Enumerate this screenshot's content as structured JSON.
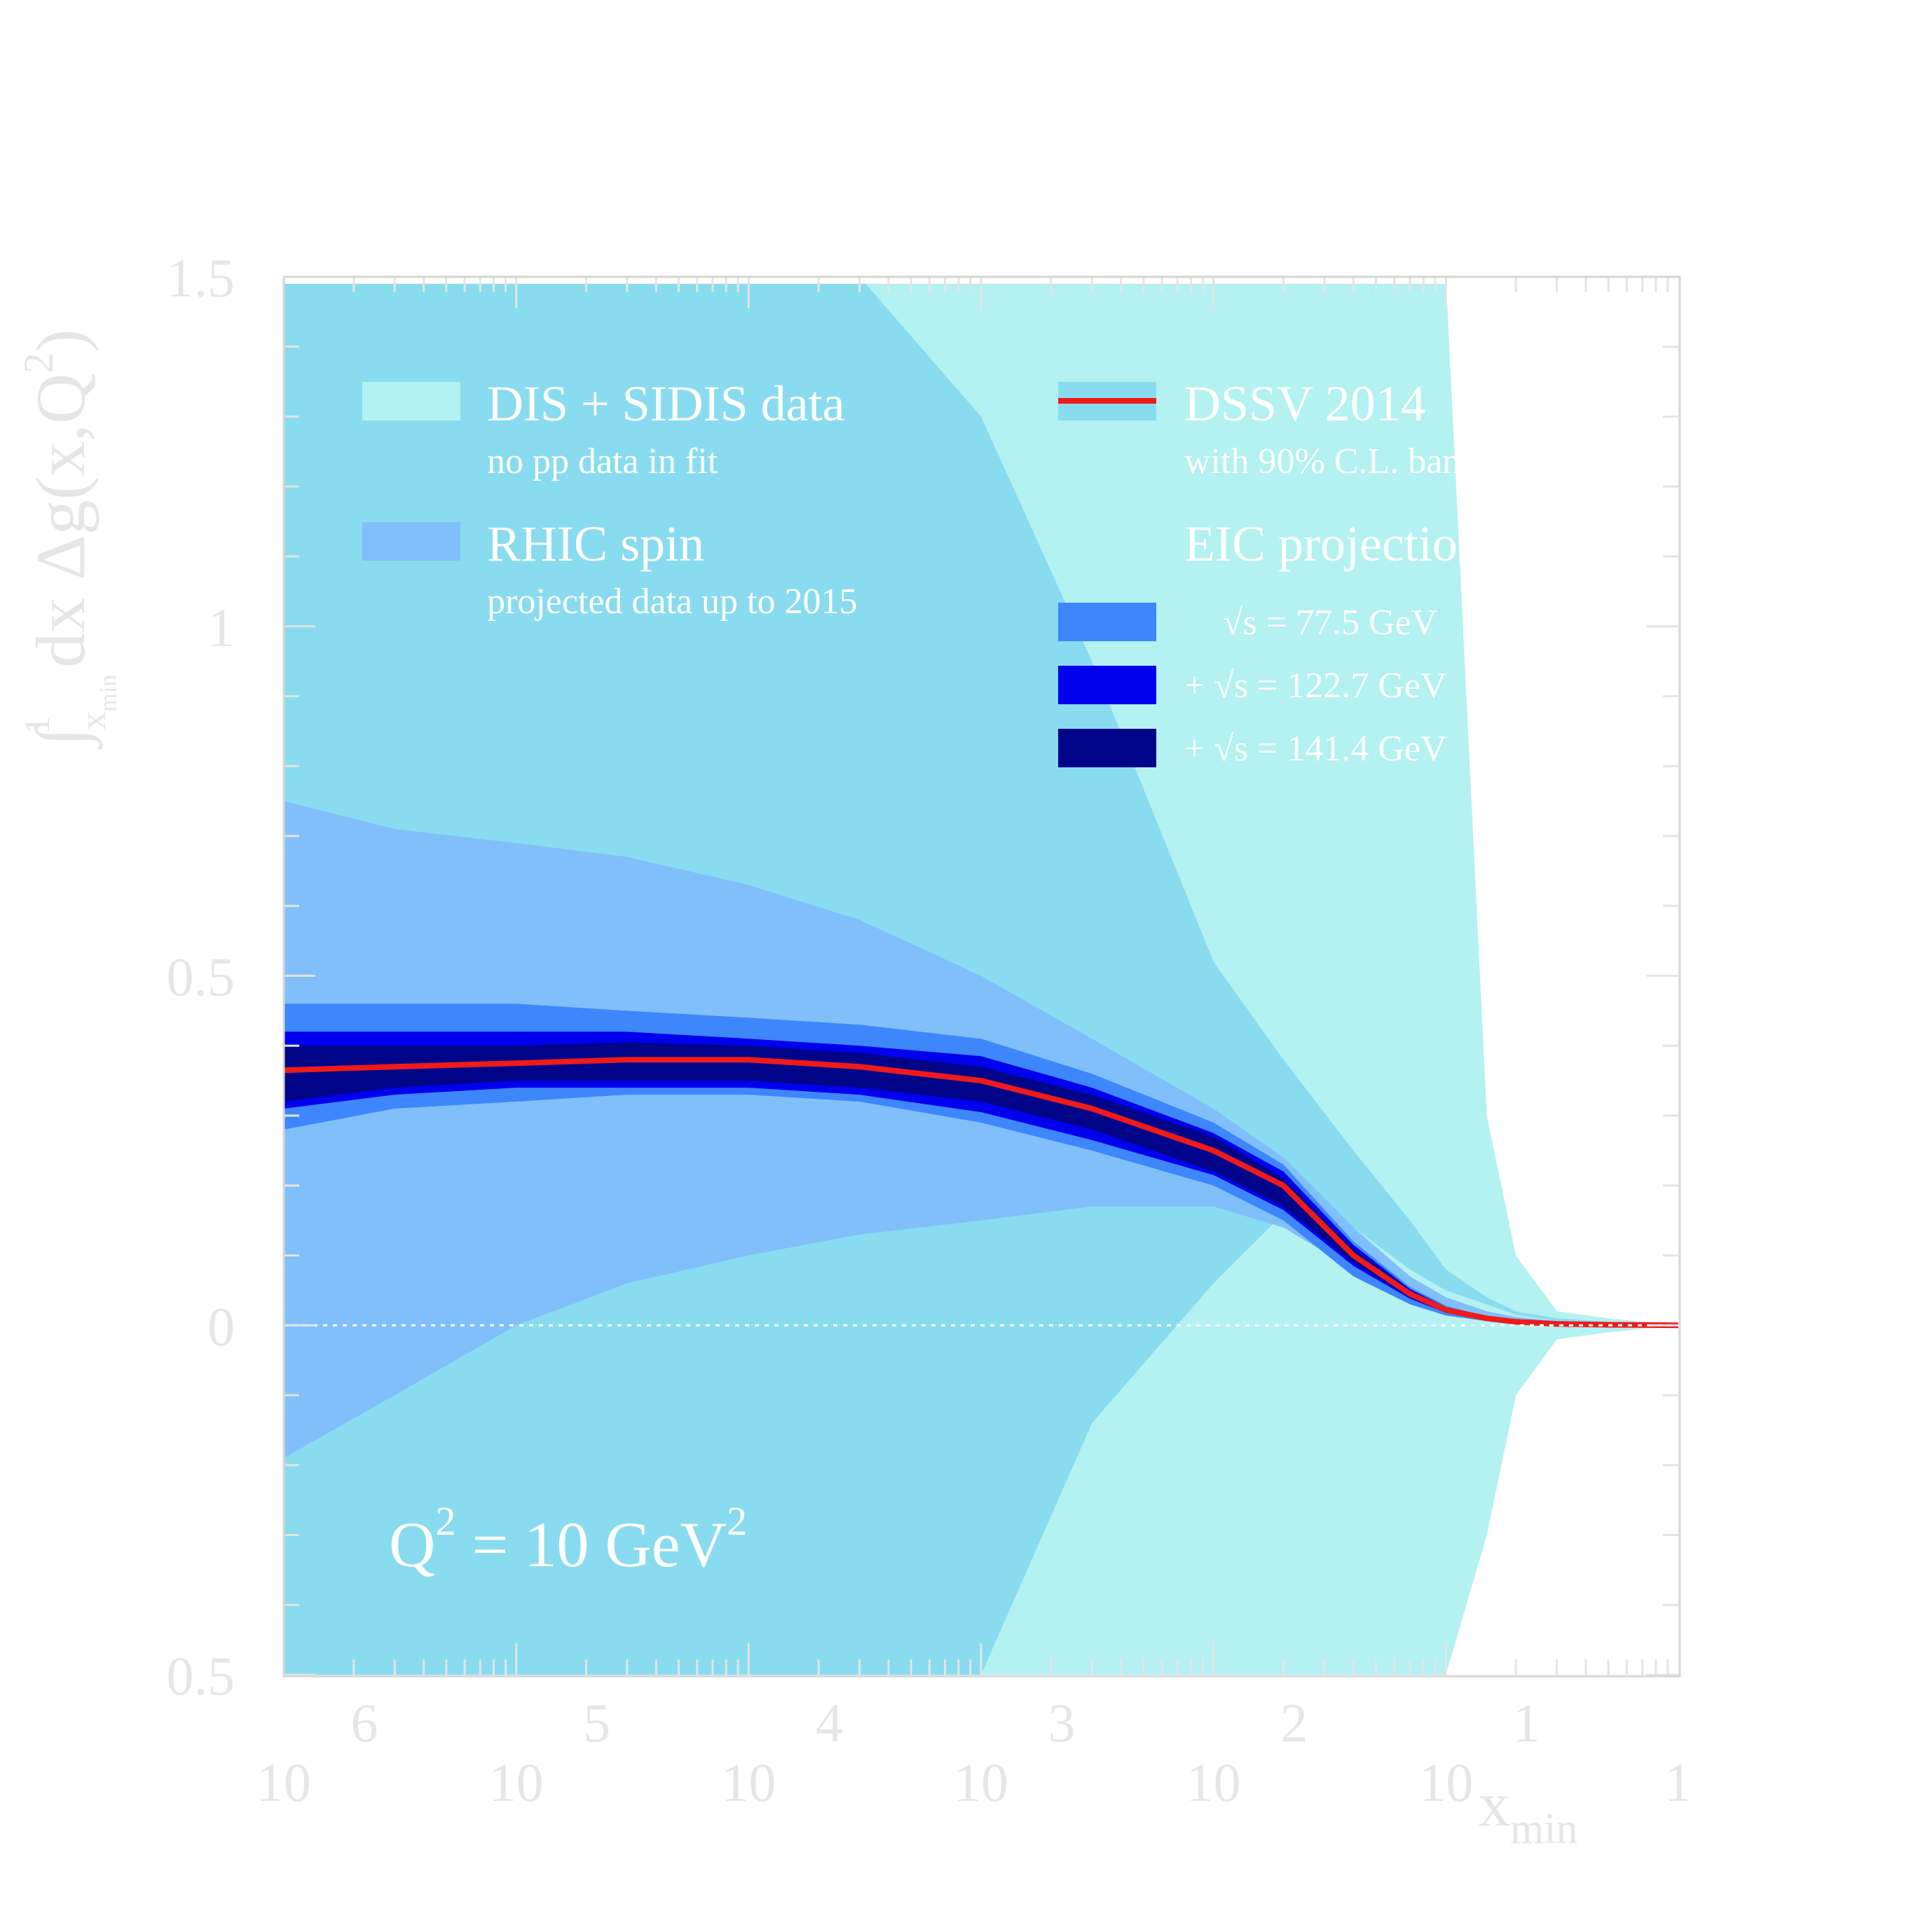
{
  "chart_data": {
    "type": "area",
    "xscale": "log",
    "xlim": [
      1e-06,
      1
    ],
    "ylim": [
      -0.5,
      1.5
    ],
    "grid": false,
    "xlabel": {
      "main": "x",
      "sub": "min"
    },
    "ylabel": {
      "integral_lower": "x",
      "integral_lower_sub": "min",
      "integral_upper": "1",
      "body": "dx Δg(x,Q",
      "power": "2",
      "close": ")"
    },
    "yticks": [
      {
        "value": 1.5,
        "label": "1.5"
      },
      {
        "value": 1.0,
        "label": "1"
      },
      {
        "value": 0.5,
        "label": "0.5"
      },
      {
        "value": 0.0,
        "label": "0"
      },
      {
        "value": -0.5,
        "label": "0.5"
      }
    ],
    "xticks": [
      {
        "value": 1e-06,
        "base": "10",
        "exp": "6"
      },
      {
        "value": 1e-05,
        "base": "10",
        "exp": "5"
      },
      {
        "value": 0.0001,
        "base": "10",
        "exp": "4"
      },
      {
        "value": 0.001,
        "base": "10",
        "exp": "3"
      },
      {
        "value": 0.01,
        "base": "10",
        "exp": "2"
      },
      {
        "value": 0.1,
        "base": "10",
        "exp": "1"
      },
      {
        "value": 1,
        "base": "1",
        "exp": ""
      }
    ],
    "annotation": {
      "q": "Q",
      "q_power": "2",
      "middle": " = 10 GeV",
      "unit_power": "2"
    },
    "legend": {
      "placement": "top",
      "dis": {
        "label": "DIS + SIDIS data",
        "sub": "no pp data in fit",
        "color": "#b4f1f1"
      },
      "rhic": {
        "label": "RHIC spin",
        "sub": "projected data up to 2015",
        "color": "#81bffb"
      },
      "dssv": {
        "label": "DSSV 2014",
        "sub": "with 90% C.L. band",
        "color": "#89dcef",
        "line_color": "#ef1a1a"
      },
      "eic_title": "EIC projections:",
      "eic": [
        {
          "label": "√s = 77.5 GeV",
          "color": "#3e86fb"
        },
        {
          "label": "+ √s = 122.7 GeV",
          "color": "#0000ef"
        },
        {
          "label": "+ √s = 141.4 GeV",
          "color": "#000489"
        }
      ]
    },
    "x": [
      1e-06,
      3e-06,
      1e-05,
      3e-05,
      0.0001,
      0.0003,
      0.001,
      0.003,
      0.01,
      0.02,
      0.04,
      0.07,
      0.1,
      0.15,
      0.2,
      0.3,
      0.5,
      0.7,
      1.0
    ],
    "series": [
      {
        "kind": "band",
        "color": "#b4f1f1",
        "upper": [
          1.5,
          1.5,
          1.5,
          1.5,
          1.5,
          1.5,
          1.5,
          1.5,
          1.5,
          1.5,
          1.5,
          1.5,
          1.5,
          0.3,
          0.1,
          0.02,
          0.01,
          0.005,
          0.003
        ],
        "lower": [
          -0.5,
          -0.5,
          -0.5,
          -0.5,
          -0.5,
          -0.5,
          -0.5,
          -0.5,
          -0.5,
          -0.5,
          -0.5,
          -0.5,
          -0.5,
          -0.3,
          -0.1,
          -0.02,
          -0.01,
          -0.005,
          -0.003
        ]
      },
      {
        "kind": "band",
        "color": "#89dcef",
        "upper": [
          1.5,
          1.5,
          1.5,
          1.5,
          1.5,
          1.5,
          1.3,
          0.95,
          0.52,
          0.38,
          0.25,
          0.15,
          0.08,
          0.04,
          0.02,
          0.01,
          0.005,
          0.003,
          0.002
        ],
        "lower": [
          -0.5,
          -0.5,
          -0.5,
          -0.5,
          -0.5,
          -0.5,
          -0.5,
          -0.14,
          0.06,
          0.16,
          0.14,
          0.08,
          0.05,
          0.03,
          0.015,
          0.006,
          0.003,
          0.002,
          0.001
        ]
      },
      {
        "kind": "band",
        "color": "#81bffb",
        "upper": [
          0.75,
          0.71,
          0.69,
          0.67,
          0.63,
          0.58,
          0.5,
          0.41,
          0.31,
          0.24,
          0.14,
          0.07,
          0.04,
          0.02,
          0.012,
          0.006,
          0.003,
          0.002,
          0.001
        ],
        "lower": [
          -0.19,
          -0.1,
          0.0,
          0.06,
          0.1,
          0.13,
          0.15,
          0.17,
          0.17,
          0.14,
          0.08,
          0.04,
          0.02,
          0.01,
          0.006,
          0.003,
          0.002,
          0.001,
          0.0
        ]
      },
      {
        "kind": "band",
        "color": "#3e86fb",
        "upper": [
          0.46,
          0.46,
          0.46,
          0.45,
          0.44,
          0.43,
          0.41,
          0.36,
          0.29,
          0.23,
          0.12,
          0.055,
          0.028,
          0.012,
          0.006,
          0.003,
          0.001,
          0.001,
          0.0
        ],
        "lower": [
          0.28,
          0.31,
          0.32,
          0.33,
          0.33,
          0.32,
          0.29,
          0.25,
          0.2,
          0.15,
          0.07,
          0.03,
          0.014,
          0.006,
          0.003,
          0.0015,
          0.0005,
          0.0003,
          0.0
        ]
      },
      {
        "kind": "band",
        "color": "#0000ef",
        "upper": [
          0.42,
          0.42,
          0.42,
          0.42,
          0.41,
          0.4,
          0.385,
          0.34,
          0.275,
          0.22,
          0.115,
          0.052,
          0.026,
          0.011,
          0.0055,
          0.0025,
          0.001,
          0.0007,
          0.0
        ],
        "lower": [
          0.31,
          0.33,
          0.34,
          0.34,
          0.34,
          0.33,
          0.305,
          0.265,
          0.215,
          0.165,
          0.085,
          0.038,
          0.018,
          0.008,
          0.004,
          0.0018,
          0.0006,
          0.0004,
          0.0
        ]
      },
      {
        "kind": "band",
        "color": "#000489",
        "upper": [
          0.4,
          0.4,
          0.4,
          0.405,
          0.4,
          0.39,
          0.37,
          0.33,
          0.27,
          0.21,
          0.11,
          0.05,
          0.025,
          0.01,
          0.005,
          0.0022,
          0.0009,
          0.0006,
          0.0
        ],
        "lower": [
          0.32,
          0.34,
          0.35,
          0.35,
          0.35,
          0.34,
          0.32,
          0.28,
          0.22,
          0.17,
          0.09,
          0.04,
          0.02,
          0.0085,
          0.0042,
          0.0019,
          0.0007,
          0.0005,
          0.0
        ]
      },
      {
        "kind": "line",
        "color": "#ef1a1a",
        "values": [
          0.365,
          0.37,
          0.375,
          0.38,
          0.38,
          0.37,
          0.35,
          0.31,
          0.25,
          0.2,
          0.1,
          0.045,
          0.022,
          0.01,
          0.005,
          0.002,
          0.0008,
          0.0005,
          0.0
        ]
      }
    ]
  }
}
